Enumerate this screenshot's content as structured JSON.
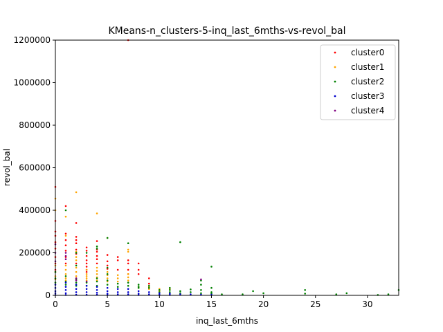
{
  "chart_data": {
    "type": "scatter",
    "title": "KMeans-n_clusters-5-inq_last_6mths-vs-revol_bal",
    "xlabel": "inq_last_6mths",
    "ylabel": "revol_bal",
    "xlim": [
      0,
      33
    ],
    "ylim": [
      0,
      1200000
    ],
    "xticks": [
      0,
      5,
      10,
      15,
      20,
      25,
      30
    ],
    "yticks": [
      0,
      200000,
      400000,
      600000,
      800000,
      1000000,
      1200000
    ],
    "legend_position": "top-right",
    "series": [
      {
        "name": "cluster0",
        "color": "#ff0000",
        "points": [
          [
            0,
            510000
          ],
          [
            0,
            350000
          ],
          [
            0,
            300000
          ],
          [
            0,
            280000
          ],
          [
            0,
            250000
          ],
          [
            0,
            220000
          ],
          [
            0,
            180000
          ],
          [
            0,
            150000
          ],
          [
            0,
            120000
          ],
          [
            1,
            420000
          ],
          [
            1,
            290000
          ],
          [
            1,
            260000
          ],
          [
            1,
            235000
          ],
          [
            1,
            210000
          ],
          [
            1,
            180000
          ],
          [
            1,
            150000
          ],
          [
            2,
            340000
          ],
          [
            2,
            275000
          ],
          [
            2,
            260000
          ],
          [
            2,
            245000
          ],
          [
            2,
            215000
          ],
          [
            2,
            195000
          ],
          [
            2,
            150000
          ],
          [
            3,
            225000
          ],
          [
            3,
            210000
          ],
          [
            3,
            185000
          ],
          [
            3,
            165000
          ],
          [
            3,
            150000
          ],
          [
            3,
            135000
          ],
          [
            3,
            120000
          ],
          [
            3,
            110000
          ],
          [
            4,
            255000
          ],
          [
            4,
            215000
          ],
          [
            4,
            205000
          ],
          [
            4,
            185000
          ],
          [
            4,
            170000
          ],
          [
            4,
            150000
          ],
          [
            5,
            190000
          ],
          [
            5,
            160000
          ],
          [
            5,
            140000
          ],
          [
            5,
            125000
          ],
          [
            6,
            180000
          ],
          [
            6,
            165000
          ],
          [
            6,
            120000
          ],
          [
            7,
            1200000
          ],
          [
            7,
            165000
          ],
          [
            7,
            150000
          ],
          [
            7,
            120000
          ],
          [
            7,
            100000
          ],
          [
            8,
            150000
          ],
          [
            8,
            120000
          ],
          [
            8,
            100000
          ],
          [
            9,
            80000
          ],
          [
            9,
            55000
          ]
        ]
      },
      {
        "name": "cluster1",
        "color": "#ffa500",
        "points": [
          [
            0,
            455000
          ],
          [
            0,
            400000
          ],
          [
            0,
            140000
          ],
          [
            0,
            110000
          ],
          [
            0,
            90000
          ],
          [
            0,
            75000
          ],
          [
            1,
            370000
          ],
          [
            1,
            280000
          ],
          [
            1,
            140000
          ],
          [
            1,
            120000
          ],
          [
            1,
            100000
          ],
          [
            1,
            80000
          ],
          [
            1,
            70000
          ],
          [
            2,
            485000
          ],
          [
            2,
            205000
          ],
          [
            2,
            180000
          ],
          [
            2,
            165000
          ],
          [
            2,
            130000
          ],
          [
            2,
            110000
          ],
          [
            2,
            90000
          ],
          [
            2,
            80000
          ],
          [
            3,
            120000
          ],
          [
            3,
            100000
          ],
          [
            3,
            90000
          ],
          [
            3,
            80000
          ],
          [
            3,
            70000
          ],
          [
            4,
            385000
          ],
          [
            4,
            130000
          ],
          [
            4,
            115000
          ],
          [
            4,
            100000
          ],
          [
            4,
            85000
          ],
          [
            4,
            70000
          ],
          [
            5,
            270000
          ],
          [
            5,
            110000
          ],
          [
            5,
            95000
          ],
          [
            5,
            80000
          ],
          [
            5,
            65000
          ],
          [
            6,
            95000
          ],
          [
            6,
            80000
          ],
          [
            6,
            65000
          ],
          [
            7,
            215000
          ],
          [
            7,
            205000
          ],
          [
            7,
            100000
          ],
          [
            7,
            85000
          ],
          [
            7,
            70000
          ],
          [
            8,
            40000
          ],
          [
            8,
            35000
          ],
          [
            9,
            40000
          ],
          [
            9,
            30000
          ],
          [
            10,
            30000
          ],
          [
            10,
            20000
          ],
          [
            11,
            30000
          ]
        ]
      },
      {
        "name": "cluster2",
        "color": "#008000",
        "points": [
          [
            0,
            110000
          ],
          [
            0,
            80000
          ],
          [
            0,
            60000
          ],
          [
            1,
            400000
          ],
          [
            1,
            90000
          ],
          [
            1,
            65000
          ],
          [
            1,
            50000
          ],
          [
            2,
            200000
          ],
          [
            2,
            140000
          ],
          [
            2,
            75000
          ],
          [
            2,
            60000
          ],
          [
            2,
            45000
          ],
          [
            3,
            200000
          ],
          [
            3,
            60000
          ],
          [
            3,
            45000
          ],
          [
            4,
            230000
          ],
          [
            4,
            220000
          ],
          [
            4,
            80000
          ],
          [
            4,
            65000
          ],
          [
            4,
            45000
          ],
          [
            5,
            270000
          ],
          [
            5,
            130000
          ],
          [
            5,
            100000
          ],
          [
            5,
            70000
          ],
          [
            5,
            50000
          ],
          [
            6,
            55000
          ],
          [
            6,
            40000
          ],
          [
            7,
            245000
          ],
          [
            7,
            60000
          ],
          [
            7,
            45000
          ],
          [
            8,
            50000
          ],
          [
            8,
            40000
          ],
          [
            8,
            35000
          ],
          [
            9,
            45000
          ],
          [
            9,
            35000
          ],
          [
            10,
            25000
          ],
          [
            10,
            15000
          ],
          [
            11,
            35000
          ],
          [
            11,
            25000
          ],
          [
            11,
            15000
          ],
          [
            12,
            250000
          ],
          [
            12,
            20000
          ],
          [
            12,
            10000
          ],
          [
            13,
            28000
          ],
          [
            13,
            15000
          ],
          [
            14,
            70000
          ],
          [
            14,
            50000
          ],
          [
            14,
            25000
          ],
          [
            14,
            10000
          ],
          [
            15,
            135000
          ],
          [
            15,
            35000
          ],
          [
            15,
            15000
          ],
          [
            15,
            8000
          ],
          [
            16,
            5000
          ],
          [
            18,
            5000
          ],
          [
            19,
            20000
          ],
          [
            20,
            10000
          ],
          [
            24,
            25000
          ],
          [
            24,
            8000
          ],
          [
            27,
            5000
          ],
          [
            28,
            10000
          ],
          [
            31,
            2000
          ],
          [
            32,
            5000
          ],
          [
            33,
            25000
          ]
        ]
      },
      {
        "name": "cluster3",
        "color": "#0000cd",
        "points": [
          [
            0,
            50000
          ],
          [
            0,
            35000
          ],
          [
            0,
            20000
          ],
          [
            0,
            10000
          ],
          [
            0,
            2000
          ],
          [
            1,
            60000
          ],
          [
            1,
            40000
          ],
          [
            1,
            25000
          ],
          [
            1,
            10000
          ],
          [
            1,
            2000
          ],
          [
            2,
            50000
          ],
          [
            2,
            30000
          ],
          [
            2,
            15000
          ],
          [
            2,
            3000
          ],
          [
            3,
            45000
          ],
          [
            3,
            30000
          ],
          [
            3,
            15000
          ],
          [
            3,
            3000
          ],
          [
            4,
            40000
          ],
          [
            4,
            25000
          ],
          [
            4,
            12000
          ],
          [
            4,
            3000
          ],
          [
            5,
            35000
          ],
          [
            5,
            20000
          ],
          [
            5,
            8000
          ],
          [
            5,
            2000
          ],
          [
            6,
            30000
          ],
          [
            6,
            15000
          ],
          [
            6,
            5000
          ],
          [
            7,
            30000
          ],
          [
            7,
            15000
          ],
          [
            7,
            5000
          ],
          [
            8,
            20000
          ],
          [
            8,
            8000
          ],
          [
            8,
            2000
          ],
          [
            9,
            15000
          ],
          [
            9,
            5000
          ],
          [
            10,
            10000
          ],
          [
            10,
            3000
          ],
          [
            11,
            8000
          ],
          [
            11,
            2000
          ],
          [
            12,
            5000
          ],
          [
            13,
            5000
          ],
          [
            14,
            3000
          ],
          [
            15,
            3000
          ]
        ]
      },
      {
        "name": "cluster4",
        "color": "#800080",
        "points": [
          [
            0,
            240000
          ],
          [
            0,
            200000
          ],
          [
            0,
            160000
          ],
          [
            1,
            200000
          ],
          [
            1,
            185000
          ],
          [
            1,
            170000
          ],
          [
            2,
            80000
          ],
          [
            2,
            70000
          ],
          [
            3,
            65000
          ],
          [
            14,
            75000
          ]
        ]
      }
    ]
  }
}
